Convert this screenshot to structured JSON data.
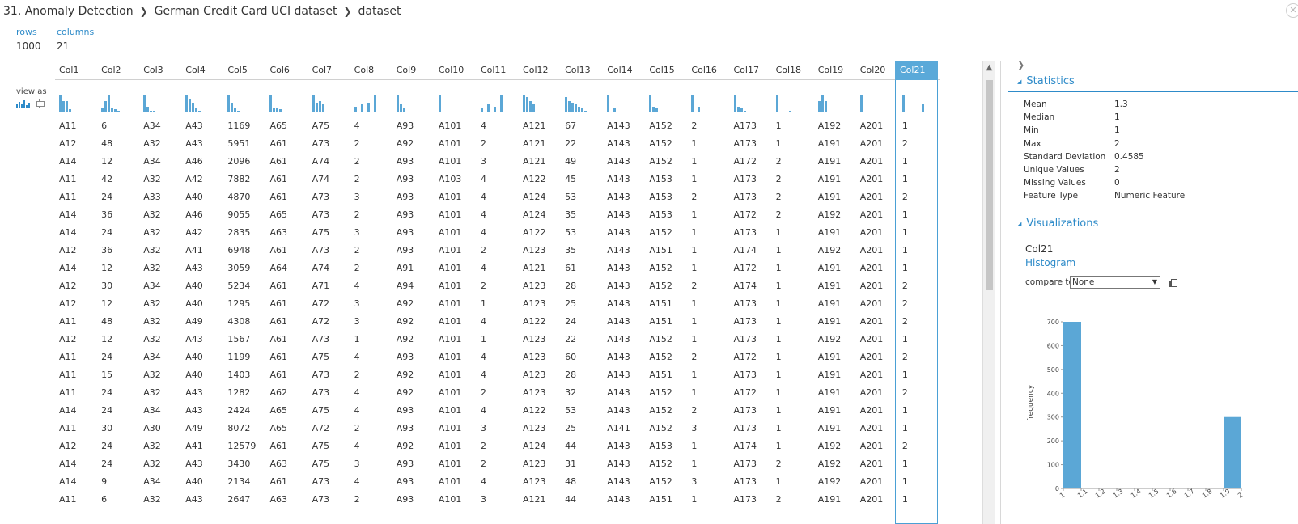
{
  "breadcrumb": [
    "31. Anomaly Detection",
    "German Credit Card UCI dataset",
    "dataset"
  ],
  "summary": {
    "rows_label": "rows",
    "rows_value": "1000",
    "columns_label": "columns",
    "columns_value": "21"
  },
  "view_as_label": "view as",
  "columns": [
    "Col1",
    "Col2",
    "Col3",
    "Col4",
    "Col5",
    "Col6",
    "Col7",
    "Col8",
    "Col9",
    "Col10",
    "Col11",
    "Col12",
    "Col13",
    "Col14",
    "Col15",
    "Col16",
    "Col17",
    "Col18",
    "Col19",
    "Col20",
    "Col21"
  ],
  "selected_column": "Col21",
  "rows": [
    [
      "A11",
      "6",
      "A34",
      "A43",
      "1169",
      "A65",
      "A75",
      "4",
      "A93",
      "A101",
      "4",
      "A121",
      "67",
      "A143",
      "A152",
      "2",
      "A173",
      "1",
      "A192",
      "A201",
      "1"
    ],
    [
      "A12",
      "48",
      "A32",
      "A43",
      "5951",
      "A61",
      "A73",
      "2",
      "A92",
      "A101",
      "2",
      "A121",
      "22",
      "A143",
      "A152",
      "1",
      "A173",
      "1",
      "A191",
      "A201",
      "2"
    ],
    [
      "A14",
      "12",
      "A34",
      "A46",
      "2096",
      "A61",
      "A74",
      "2",
      "A93",
      "A101",
      "3",
      "A121",
      "49",
      "A143",
      "A152",
      "1",
      "A172",
      "2",
      "A191",
      "A201",
      "1"
    ],
    [
      "A11",
      "42",
      "A32",
      "A42",
      "7882",
      "A61",
      "A74",
      "2",
      "A93",
      "A103",
      "4",
      "A122",
      "45",
      "A143",
      "A153",
      "1",
      "A173",
      "2",
      "A191",
      "A201",
      "1"
    ],
    [
      "A11",
      "24",
      "A33",
      "A40",
      "4870",
      "A61",
      "A73",
      "3",
      "A93",
      "A101",
      "4",
      "A124",
      "53",
      "A143",
      "A153",
      "2",
      "A173",
      "2",
      "A191",
      "A201",
      "2"
    ],
    [
      "A14",
      "36",
      "A32",
      "A46",
      "9055",
      "A65",
      "A73",
      "2",
      "A93",
      "A101",
      "4",
      "A124",
      "35",
      "A143",
      "A153",
      "1",
      "A172",
      "2",
      "A192",
      "A201",
      "1"
    ],
    [
      "A14",
      "24",
      "A32",
      "A42",
      "2835",
      "A63",
      "A75",
      "3",
      "A93",
      "A101",
      "4",
      "A122",
      "53",
      "A143",
      "A152",
      "1",
      "A173",
      "1",
      "A191",
      "A201",
      "1"
    ],
    [
      "A12",
      "36",
      "A32",
      "A41",
      "6948",
      "A61",
      "A73",
      "2",
      "A93",
      "A101",
      "2",
      "A123",
      "35",
      "A143",
      "A151",
      "1",
      "A174",
      "1",
      "A192",
      "A201",
      "1"
    ],
    [
      "A14",
      "12",
      "A32",
      "A43",
      "3059",
      "A64",
      "A74",
      "2",
      "A91",
      "A101",
      "4",
      "A121",
      "61",
      "A143",
      "A152",
      "1",
      "A172",
      "1",
      "A191",
      "A201",
      "1"
    ],
    [
      "A12",
      "30",
      "A34",
      "A40",
      "5234",
      "A61",
      "A71",
      "4",
      "A94",
      "A101",
      "2",
      "A123",
      "28",
      "A143",
      "A152",
      "2",
      "A174",
      "1",
      "A191",
      "A201",
      "2"
    ],
    [
      "A12",
      "12",
      "A32",
      "A40",
      "1295",
      "A61",
      "A72",
      "3",
      "A92",
      "A101",
      "1",
      "A123",
      "25",
      "A143",
      "A151",
      "1",
      "A173",
      "1",
      "A191",
      "A201",
      "2"
    ],
    [
      "A11",
      "48",
      "A32",
      "A49",
      "4308",
      "A61",
      "A72",
      "3",
      "A92",
      "A101",
      "4",
      "A122",
      "24",
      "A143",
      "A151",
      "1",
      "A173",
      "1",
      "A191",
      "A201",
      "2"
    ],
    [
      "A12",
      "12",
      "A32",
      "A43",
      "1567",
      "A61",
      "A73",
      "1",
      "A92",
      "A101",
      "1",
      "A123",
      "22",
      "A143",
      "A152",
      "1",
      "A173",
      "1",
      "A192",
      "A201",
      "1"
    ],
    [
      "A11",
      "24",
      "A34",
      "A40",
      "1199",
      "A61",
      "A75",
      "4",
      "A93",
      "A101",
      "4",
      "A123",
      "60",
      "A143",
      "A152",
      "2",
      "A172",
      "1",
      "A191",
      "A201",
      "2"
    ],
    [
      "A11",
      "15",
      "A32",
      "A40",
      "1403",
      "A61",
      "A73",
      "2",
      "A92",
      "A101",
      "4",
      "A123",
      "28",
      "A143",
      "A151",
      "1",
      "A173",
      "1",
      "A191",
      "A201",
      "1"
    ],
    [
      "A11",
      "24",
      "A32",
      "A43",
      "1282",
      "A62",
      "A73",
      "4",
      "A92",
      "A101",
      "2",
      "A123",
      "32",
      "A143",
      "A152",
      "1",
      "A172",
      "1",
      "A191",
      "A201",
      "2"
    ],
    [
      "A14",
      "24",
      "A34",
      "A43",
      "2424",
      "A65",
      "A75",
      "4",
      "A93",
      "A101",
      "4",
      "A122",
      "53",
      "A143",
      "A152",
      "2",
      "A173",
      "1",
      "A191",
      "A201",
      "1"
    ],
    [
      "A11",
      "30",
      "A30",
      "A49",
      "8072",
      "A65",
      "A72",
      "2",
      "A93",
      "A101",
      "3",
      "A123",
      "25",
      "A141",
      "A152",
      "3",
      "A173",
      "1",
      "A191",
      "A201",
      "1"
    ],
    [
      "A12",
      "24",
      "A32",
      "A41",
      "12579",
      "A61",
      "A75",
      "4",
      "A92",
      "A101",
      "2",
      "A124",
      "44",
      "A143",
      "A153",
      "1",
      "A174",
      "1",
      "A192",
      "A201",
      "2"
    ],
    [
      "A14",
      "24",
      "A32",
      "A43",
      "3430",
      "A63",
      "A75",
      "3",
      "A93",
      "A101",
      "2",
      "A123",
      "31",
      "A143",
      "A152",
      "1",
      "A173",
      "2",
      "A192",
      "A201",
      "1"
    ],
    [
      "A14",
      "9",
      "A34",
      "A40",
      "2134",
      "A61",
      "A73",
      "4",
      "A93",
      "A101",
      "4",
      "A123",
      "48",
      "A143",
      "A152",
      "3",
      "A173",
      "1",
      "A192",
      "A201",
      "1"
    ],
    [
      "A11",
      "6",
      "A32",
      "A43",
      "2647",
      "A63",
      "A73",
      "2",
      "A93",
      "A101",
      "3",
      "A121",
      "44",
      "A143",
      "A151",
      "1",
      "A173",
      "2",
      "A191",
      "A201",
      "1"
    ]
  ],
  "mini_histograms": [
    [
      0.9,
      0.6,
      0.6,
      0.15
    ],
    [
      0.2,
      0.6,
      0.9,
      0.2,
      0.15,
      0.1
    ],
    [
      0.9,
      0.3,
      0.1,
      0.1
    ],
    [
      0.9,
      0.7,
      0.5,
      0.2,
      0.1
    ],
    [
      0.9,
      0.5,
      0.2,
      0.1,
      0.05,
      0.05
    ],
    [
      0.9,
      0.25,
      0.2,
      0.15
    ],
    [
      0.9,
      0.5,
      0.6,
      0.4
    ],
    [
      0.3,
      0.0,
      0.4,
      0.0,
      0.5,
      0.0,
      0.9
    ],
    [
      0.9,
      0.4,
      0.2
    ],
    [
      0.9,
      0.0,
      0.05,
      0.0,
      0.05
    ],
    [
      0.2,
      0.0,
      0.4,
      0.0,
      0.3,
      0.0,
      0.9
    ],
    [
      0.9,
      0.8,
      0.6,
      0.4
    ],
    [
      0.8,
      0.6,
      0.5,
      0.4,
      0.3,
      0.2,
      0.1
    ],
    [
      0.9,
      0.0,
      0.2
    ],
    [
      0.9,
      0.3,
      0.2
    ],
    [
      0.9,
      0.0,
      0.3,
      0.0,
      0.05,
      0.0,
      0.02
    ],
    [
      0.9,
      0.3,
      0.25,
      0.1
    ],
    [
      0.9,
      0.0,
      0.0,
      0.0,
      0.1
    ],
    [
      0.6,
      0.9,
      0.6
    ],
    [
      0.9,
      0.0,
      0.05
    ],
    [
      0.9,
      0.0,
      0.0,
      0.0,
      0.0,
      0.0,
      0.4
    ]
  ],
  "panel": {
    "statistics_title": "Statistics",
    "stats": [
      {
        "k": "Mean",
        "v": "1.3"
      },
      {
        "k": "Median",
        "v": "1"
      },
      {
        "k": "Min",
        "v": "1"
      },
      {
        "k": "Max",
        "v": "2"
      },
      {
        "k": "Standard Deviation",
        "v": "0.4585"
      },
      {
        "k": "Unique Values",
        "v": "2"
      },
      {
        "k": "Missing Values",
        "v": "0"
      },
      {
        "k": "Feature Type",
        "v": "Numeric Feature"
      }
    ],
    "visualizations_title": "Visualizations",
    "viz_column": "Col21",
    "viz_type": "Histogram",
    "compare_label": "compare to",
    "compare_value": "None"
  },
  "colors": {
    "accent": "#2e8bc9",
    "bar": "#5ba7d6",
    "selected_header": "#5aa9d9"
  },
  "chart_data": {
    "type": "bar",
    "title": "",
    "xlabel": "",
    "ylabel": "frequency",
    "bins": [
      [
        1.0,
        1.1,
        700
      ],
      [
        1.9,
        2.0,
        300
      ]
    ],
    "xlim": [
      1,
      2
    ],
    "ylim": [
      0,
      700
    ],
    "xticks": [
      "1",
      "1.1",
      "1.2",
      "1.3",
      "1.4",
      "1.5",
      "1.6",
      "1.7",
      "1.8",
      "1.9",
      "2"
    ],
    "yticks": [
      "0",
      "100",
      "200",
      "300",
      "400",
      "500",
      "600",
      "700"
    ],
    "grid": false
  }
}
